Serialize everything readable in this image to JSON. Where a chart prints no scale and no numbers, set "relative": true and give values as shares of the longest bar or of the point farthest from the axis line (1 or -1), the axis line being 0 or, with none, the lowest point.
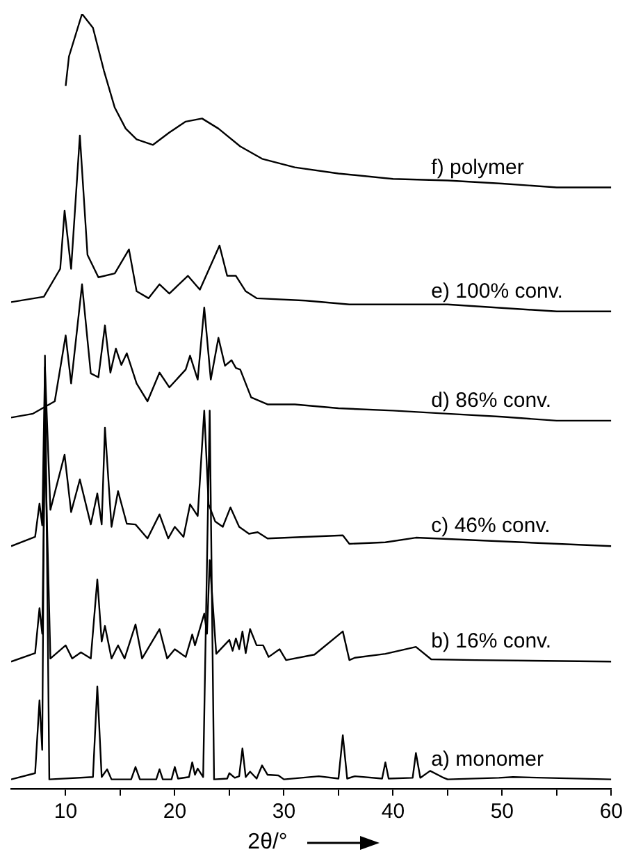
{
  "chart_data": {
    "type": "line",
    "relative": true,
    "legend": false,
    "xlabel": "2θ/°",
    "xlim": [
      5,
      60
    ],
    "xticks": [
      10,
      {
        "value": 15,
        "label": null
      },
      20,
      {
        "value": 25,
        "label": null
      },
      30,
      {
        "value": 35,
        "label": null
      },
      40,
      {
        "value": 45,
        "label": null
      },
      50,
      {
        "value": 55,
        "label": null
      },
      60
    ],
    "series": [
      {
        "name": "a) monomer",
        "color": "#000000",
        "x": [
          5,
          7.2,
          7.6,
          7.85,
          8.1,
          8.5,
          12.5,
          12.9,
          13.3,
          13.8,
          14.2,
          16.0,
          16.4,
          16.8,
          18.3,
          18.6,
          18.9,
          19.7,
          20,
          20.3,
          21.3,
          21.6,
          21.85,
          22.1,
          22.6,
          23.2,
          23.6,
          24.8,
          25,
          25.5,
          25.9,
          26.2,
          26.5,
          26.9,
          27.5,
          28,
          28.5,
          29.5,
          30,
          33.2,
          35,
          35.4,
          35.8,
          36.5,
          39,
          39.3,
          39.6,
          41.8,
          42.1,
          42.5,
          43.4,
          44.5,
          45,
          49.7,
          51,
          60
        ],
        "values": [
          0.012,
          0.02,
          0.114,
          0.05,
          0.559,
          0.012,
          0.015,
          0.132,
          0.015,
          0.025,
          0.012,
          0.012,
          0.028,
          0.012,
          0.012,
          0.025,
          0.012,
          0.012,
          0.028,
          0.013,
          0.015,
          0.034,
          0.018,
          0.026,
          0.015,
          0.488,
          0.012,
          0.013,
          0.02,
          0.014,
          0.016,
          0.052,
          0.015,
          0.022,
          0.013,
          0.03,
          0.018,
          0.017,
          0.012,
          0.016,
          0.013,
          0.069,
          0.013,
          0.016,
          0.013,
          0.034,
          0.013,
          0.014,
          0.046,
          0.014,
          0.023,
          0.015,
          0.012,
          0.014,
          0.015,
          0.012
        ]
      },
      {
        "name": "b) 16% conv.",
        "color": "#000000",
        "x": [
          5,
          7.2,
          7.6,
          7.85,
          8.1,
          8.6,
          10,
          10.6,
          11.4,
          12.3,
          12.9,
          13.3,
          13.6,
          14.2,
          14.8,
          15.4,
          16.4,
          17,
          18.6,
          19.3,
          20,
          21,
          21.6,
          21.85,
          22.1,
          22.7,
          22.95,
          23.2,
          23.8,
          25,
          25.3,
          25.6,
          25.9,
          26.2,
          26.5,
          26.9,
          27.5,
          28.1,
          28.6,
          29.6,
          30.2,
          32.8,
          35.4,
          36,
          36.5,
          39.3,
          42.1,
          43.5,
          47.5,
          60
        ],
        "values": [
          0.164,
          0.175,
          0.233,
          0.2,
          0.45,
          0.168,
          0.185,
          0.168,
          0.176,
          0.168,
          0.27,
          0.19,
          0.21,
          0.168,
          0.185,
          0.168,
          0.212,
          0.168,
          0.206,
          0.168,
          0.18,
          0.17,
          0.199,
          0.185,
          0.197,
          0.226,
          0.2,
          0.295,
          0.174,
          0.192,
          0.178,
          0.194,
          0.18,
          0.203,
          0.175,
          0.206,
          0.185,
          0.185,
          0.17,
          0.18,
          0.166,
          0.173,
          0.203,
          0.166,
          0.169,
          0.174,
          0.183,
          0.167,
          0.166,
          0.164
        ]
      },
      {
        "name": "c) 46% conv.",
        "color": "#000000",
        "x": [
          5,
          7.2,
          7.6,
          7.85,
          8.1,
          8.6,
          9.9,
          10.5,
          11.3,
          12.3,
          12.9,
          13.3,
          13.6,
          14.2,
          14.8,
          15.6,
          16.4,
          17.5,
          18.6,
          19.4,
          20,
          20.8,
          21.4,
          22.1,
          22.7,
          23.1,
          23.7,
          24.4,
          25.1,
          25.9,
          26.8,
          27.6,
          28.5,
          35.4,
          36,
          39.3,
          42.1,
          60
        ],
        "values": [
          0.313,
          0.325,
          0.368,
          0.34,
          0.544,
          0.36,
          0.431,
          0.357,
          0.399,
          0.341,
          0.381,
          0.341,
          0.466,
          0.338,
          0.384,
          0.342,
          0.341,
          0.323,
          0.354,
          0.323,
          0.338,
          0.325,
          0.367,
          0.352,
          0.488,
          0.367,
          0.345,
          0.338,
          0.363,
          0.338,
          0.329,
          0.331,
          0.323,
          0.327,
          0.316,
          0.318,
          0.324,
          0.313
        ]
      },
      {
        "name": "d) 86% conv.",
        "color": "#000000",
        "x": [
          5,
          7,
          9,
          10,
          10.5,
          11.5,
          12.3,
          13,
          13.6,
          14.1,
          14.6,
          15.1,
          15.6,
          16.5,
          17.5,
          18.6,
          19.5,
          21,
          21.4,
          22.1,
          22.7,
          23.3,
          24,
          24.6,
          25.2,
          25.6,
          26,
          27,
          28.5,
          31,
          35,
          40,
          45,
          50,
          55,
          60
        ],
        "values": [
          0.479,
          0.484,
          0.5,
          0.585,
          0.523,
          0.651,
          0.536,
          0.531,
          0.598,
          0.537,
          0.568,
          0.547,
          0.562,
          0.523,
          0.5,
          0.537,
          0.518,
          0.541,
          0.559,
          0.528,
          0.621,
          0.528,
          0.582,
          0.546,
          0.553,
          0.543,
          0.541,
          0.505,
          0.496,
          0.496,
          0.491,
          0.488,
          0.484,
          0.48,
          0.475,
          0.475
        ]
      },
      {
        "name": "e) 100% conv.",
        "color": "#000000",
        "x": [
          5,
          8,
          9.5,
          9.9,
          10.5,
          11.3,
          12,
          13,
          14.5,
          15.8,
          16.5,
          17.6,
          18.6,
          19.5,
          21.2,
          22.3,
          24.1,
          24.8,
          25.6,
          26.5,
          27.5,
          32,
          36,
          45,
          55,
          60
        ],
        "values": [
          0.628,
          0.635,
          0.671,
          0.746,
          0.671,
          0.843,
          0.689,
          0.66,
          0.665,
          0.696,
          0.642,
          0.633,
          0.651,
          0.639,
          0.662,
          0.644,
          0.701,
          0.662,
          0.662,
          0.642,
          0.633,
          0.63,
          0.625,
          0.625,
          0.616,
          0.616
        ]
      },
      {
        "name": "f) polymer",
        "color": "#000000",
        "x": [
          10,
          10.3,
          11.5,
          12.5,
          13.5,
          14.5,
          15.5,
          16.5,
          18,
          19.5,
          21,
          22.5,
          24,
          26,
          28,
          31,
          35,
          40,
          45,
          50,
          55,
          60
        ],
        "values": [
          0.907,
          0.945,
          1,
          0.982,
          0.927,
          0.879,
          0.852,
          0.838,
          0.831,
          0.847,
          0.861,
          0.865,
          0.852,
          0.829,
          0.813,
          0.802,
          0.794,
          0.787,
          0.785,
          0.781,
          0.776,
          0.776
        ]
      }
    ]
  }
}
